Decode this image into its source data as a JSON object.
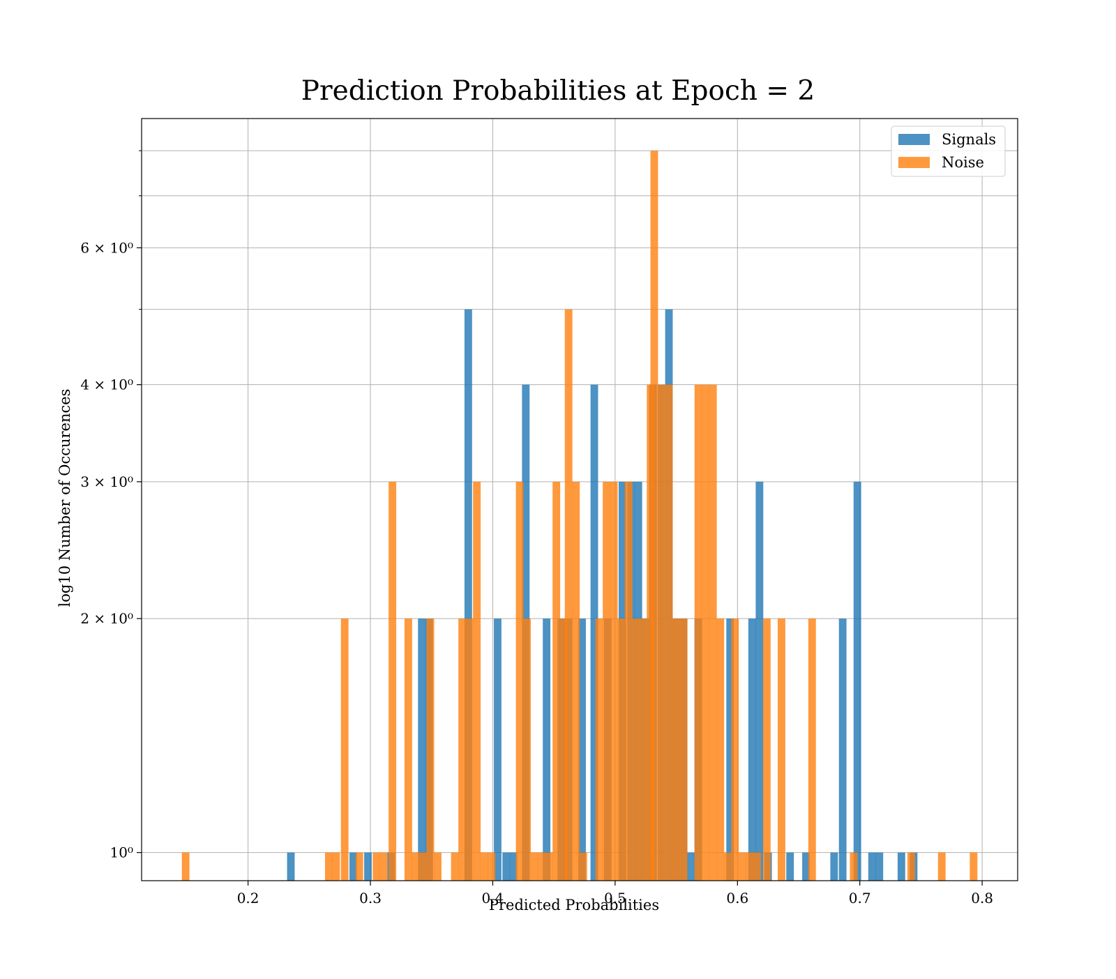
{
  "chart_data": {
    "type": "bar",
    "title": "Prediction Probabilities at Epoch = 2",
    "xlabel": "Predicted Probabilities",
    "ylabel": "log10 Number of Occurences",
    "xlim": [
      0.113,
      0.829
    ],
    "ylim": [
      0.92,
      8.8
    ],
    "yscale": "log",
    "grid": true,
    "legend_position": "top-right",
    "x_ticks": [
      0.2,
      0.3,
      0.4,
      0.5,
      0.6,
      0.7,
      0.8
    ],
    "x_tick_labels": [
      "0.2",
      "0.3",
      "0.4",
      "0.5",
      "0.6",
      "0.7",
      "0.8"
    ],
    "y_ticks": [
      1,
      2,
      3,
      4,
      6
    ],
    "y_tick_labels": [
      "10⁰",
      "2 × 10⁰",
      "3 × 10⁰",
      "4 × 10⁰",
      "6 × 10⁰"
    ],
    "y_minor_grid": [
      5,
      7,
      8
    ],
    "bin_width": 0.0062,
    "series": [
      {
        "name": "Signals",
        "color": "#1f77b4",
        "bins": [
          {
            "x": 0.235,
            "y": 1
          },
          {
            "x": 0.286,
            "y": 1
          },
          {
            "x": 0.298,
            "y": 1
          },
          {
            "x": 0.317,
            "y": 1
          },
          {
            "x": 0.342,
            "y": 2
          },
          {
            "x": 0.348,
            "y": 2
          },
          {
            "x": 0.38,
            "y": 5
          },
          {
            "x": 0.404,
            "y": 2
          },
          {
            "x": 0.411,
            "y": 1
          },
          {
            "x": 0.417,
            "y": 1
          },
          {
            "x": 0.427,
            "y": 4
          },
          {
            "x": 0.444,
            "y": 2
          },
          {
            "x": 0.456,
            "y": 2
          },
          {
            "x": 0.462,
            "y": 2
          },
          {
            "x": 0.473,
            "y": 2
          },
          {
            "x": 0.483,
            "y": 4
          },
          {
            "x": 0.494,
            "y": 2
          },
          {
            "x": 0.506,
            "y": 3
          },
          {
            "x": 0.513,
            "y": 3
          },
          {
            "x": 0.519,
            "y": 3
          },
          {
            "x": 0.525,
            "y": 2
          },
          {
            "x": 0.531,
            "y": 4
          },
          {
            "x": 0.538,
            "y": 4
          },
          {
            "x": 0.544,
            "y": 5
          },
          {
            "x": 0.55,
            "y": 2
          },
          {
            "x": 0.556,
            "y": 2
          },
          {
            "x": 0.562,
            "y": 1
          },
          {
            "x": 0.568,
            "y": 2
          },
          {
            "x": 0.594,
            "y": 2
          },
          {
            "x": 0.612,
            "y": 2
          },
          {
            "x": 0.618,
            "y": 3
          },
          {
            "x": 0.625,
            "y": 1
          },
          {
            "x": 0.643,
            "y": 1
          },
          {
            "x": 0.656,
            "y": 1
          },
          {
            "x": 0.679,
            "y": 1
          },
          {
            "x": 0.686,
            "y": 2
          },
          {
            "x": 0.698,
            "y": 3
          },
          {
            "x": 0.71,
            "y": 1
          },
          {
            "x": 0.716,
            "y": 1
          },
          {
            "x": 0.734,
            "y": 1
          },
          {
            "x": 0.744,
            "y": 1
          }
        ]
      },
      {
        "name": "Noise",
        "color": "#ff7f0e",
        "bins": [
          {
            "x": 0.149,
            "y": 1
          },
          {
            "x": 0.266,
            "y": 1
          },
          {
            "x": 0.272,
            "y": 1
          },
          {
            "x": 0.279,
            "y": 2
          },
          {
            "x": 0.291,
            "y": 1
          },
          {
            "x": 0.305,
            "y": 1
          },
          {
            "x": 0.311,
            "y": 1
          },
          {
            "x": 0.318,
            "y": 3
          },
          {
            "x": 0.331,
            "y": 2
          },
          {
            "x": 0.337,
            "y": 1
          },
          {
            "x": 0.343,
            "y": 1
          },
          {
            "x": 0.349,
            "y": 2
          },
          {
            "x": 0.355,
            "y": 1
          },
          {
            "x": 0.369,
            "y": 1
          },
          {
            "x": 0.375,
            "y": 2
          },
          {
            "x": 0.381,
            "y": 2
          },
          {
            "x": 0.387,
            "y": 3
          },
          {
            "x": 0.393,
            "y": 1
          },
          {
            "x": 0.399,
            "y": 1
          },
          {
            "x": 0.422,
            "y": 3
          },
          {
            "x": 0.428,
            "y": 2
          },
          {
            "x": 0.434,
            "y": 1
          },
          {
            "x": 0.44,
            "y": 1
          },
          {
            "x": 0.446,
            "y": 1
          },
          {
            "x": 0.452,
            "y": 3
          },
          {
            "x": 0.458,
            "y": 2
          },
          {
            "x": 0.462,
            "y": 5
          },
          {
            "x": 0.468,
            "y": 3
          },
          {
            "x": 0.474,
            "y": 1
          },
          {
            "x": 0.487,
            "y": 2
          },
          {
            "x": 0.493,
            "y": 3
          },
          {
            "x": 0.499,
            "y": 3
          },
          {
            "x": 0.505,
            "y": 2
          },
          {
            "x": 0.511,
            "y": 3
          },
          {
            "x": 0.517,
            "y": 2
          },
          {
            "x": 0.523,
            "y": 2
          },
          {
            "x": 0.529,
            "y": 4
          },
          {
            "x": 0.532,
            "y": 8
          },
          {
            "x": 0.538,
            "y": 4
          },
          {
            "x": 0.544,
            "y": 4
          },
          {
            "x": 0.55,
            "y": 2
          },
          {
            "x": 0.556,
            "y": 2
          },
          {
            "x": 0.568,
            "y": 4
          },
          {
            "x": 0.574,
            "y": 4
          },
          {
            "x": 0.58,
            "y": 4
          },
          {
            "x": 0.586,
            "y": 2
          },
          {
            "x": 0.592,
            "y": 1
          },
          {
            "x": 0.598,
            "y": 2
          },
          {
            "x": 0.604,
            "y": 1
          },
          {
            "x": 0.61,
            "y": 1
          },
          {
            "x": 0.616,
            "y": 1
          },
          {
            "x": 0.624,
            "y": 2
          },
          {
            "x": 0.636,
            "y": 2
          },
          {
            "x": 0.661,
            "y": 2
          },
          {
            "x": 0.695,
            "y": 1
          },
          {
            "x": 0.742,
            "y": 1
          },
          {
            "x": 0.767,
            "y": 1
          },
          {
            "x": 0.793,
            "y": 1
          }
        ]
      }
    ]
  }
}
